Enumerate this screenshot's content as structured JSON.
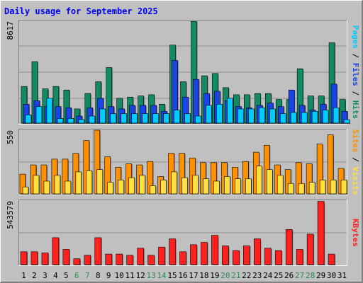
{
  "chart_data": [
    {
      "type": "bar",
      "title": "Daily usage for September 2025",
      "panel": "hits-files-pages",
      "categories": [
        "1",
        "2",
        "3",
        "4",
        "5",
        "6",
        "7",
        "8",
        "9",
        "10",
        "11",
        "12",
        "13",
        "14",
        "15",
        "16",
        "17",
        "18",
        "19",
        "20",
        "21",
        "22",
        "23",
        "24",
        "25",
        "26",
        "27",
        "28",
        "29",
        "30",
        "31"
      ],
      "weekend_days": [
        "6",
        "7",
        "13",
        "14",
        "20",
        "21",
        "27",
        "28"
      ],
      "ymax_label": "8617",
      "ylim": [
        0,
        8617
      ],
      "ylabel_parts": [
        {
          "text": "Pages",
          "color": "#00ccff"
        },
        {
          "text": " / ",
          "color": "#000000"
        },
        {
          "text": "Files",
          "color": "#1a44e6"
        },
        {
          "text": " / ",
          "color": "#000000"
        },
        {
          "text": "Hits",
          "color": "#138a66"
        }
      ],
      "series": [
        {
          "name": "Hits",
          "color": "#138a66",
          "values": [
            3100,
            5200,
            2900,
            3100,
            2800,
            1200,
            2500,
            3500,
            4700,
            2100,
            2200,
            2300,
            2400,
            1600,
            6600,
            3500,
            8600,
            4000,
            4200,
            3000,
            2400,
            2400,
            2500,
            2500,
            2000,
            2000,
            4600,
            2300,
            2300,
            6800,
            2000
          ]
        },
        {
          "name": "Files",
          "color": "#1a44e6",
          "values": [
            1600,
            1900,
            1400,
            1400,
            1300,
            600,
            1300,
            2100,
            1400,
            1200,
            1500,
            1500,
            1500,
            1000,
            5300,
            2200,
            3700,
            2500,
            2700,
            1900,
            1400,
            1300,
            1500,
            1700,
            1400,
            2800,
            1500,
            1100,
            1600,
            3300,
            1000
          ]
        },
        {
          "name": "Pages",
          "color": "#00ccff",
          "values": [
            700,
            1400,
            2100,
            400,
            400,
            300,
            600,
            1200,
            800,
            800,
            800,
            800,
            800,
            800,
            1100,
            800,
            600,
            1500,
            1600,
            2100,
            1200,
            1200,
            1300,
            1200,
            800,
            900,
            900,
            1000,
            1100,
            1300,
            300
          ]
        }
      ]
    },
    {
      "type": "bar",
      "panel": "visits-sites",
      "categories": [
        "1",
        "2",
        "3",
        "4",
        "5",
        "6",
        "7",
        "8",
        "9",
        "10",
        "11",
        "12",
        "13",
        "14",
        "15",
        "16",
        "17",
        "18",
        "19",
        "20",
        "21",
        "22",
        "23",
        "24",
        "25",
        "26",
        "27",
        "28",
        "29",
        "30",
        "31"
      ],
      "ymax_label": "550",
      "ylim": [
        0,
        550
      ],
      "ylabel_parts": [
        {
          "text": "Sites",
          "color": "#ff9000"
        },
        {
          "text": " / ",
          "color": "#000000"
        },
        {
          "text": "Visits",
          "color": "#ffe040"
        }
      ],
      "series": [
        {
          "name": "Visits",
          "color": "#ffe040",
          "values": [
            60,
            160,
            110,
            160,
            110,
            190,
            200,
            210,
            100,
            120,
            140,
            160,
            70,
            120,
            190,
            140,
            160,
            130,
            110,
            150,
            130,
            130,
            240,
            210,
            160,
            90,
            90,
            100,
            120,
            120,
            120
          ]
        },
        {
          "name": "Sites",
          "color": "#ff9000",
          "values": [
            170,
            250,
            250,
            300,
            300,
            350,
            460,
            560,
            320,
            230,
            260,
            250,
            280,
            150,
            350,
            350,
            310,
            270,
            270,
            270,
            230,
            280,
            360,
            420,
            250,
            210,
            270,
            260,
            430,
            510,
            220
          ]
        }
      ]
    },
    {
      "type": "bar",
      "panel": "kbytes",
      "categories": [
        "1",
        "2",
        "3",
        "4",
        "5",
        "6",
        "7",
        "8",
        "9",
        "10",
        "11",
        "12",
        "13",
        "14",
        "15",
        "16",
        "17",
        "18",
        "19",
        "20",
        "21",
        "22",
        "23",
        "24",
        "25",
        "26",
        "27",
        "28",
        "29",
        "30",
        "31"
      ],
      "ymax_label": "543579",
      "ylim": [
        0,
        543579
      ],
      "ylabel_parts": [
        {
          "text": "KBytes",
          "color": "#ff2020"
        }
      ],
      "series": [
        {
          "name": "KBytes",
          "color": "#ff2020",
          "values": [
            110000,
            110000,
            100000,
            230000,
            130000,
            50000,
            80000,
            230000,
            90000,
            90000,
            80000,
            140000,
            80000,
            150000,
            220000,
            110000,
            170000,
            190000,
            250000,
            160000,
            120000,
            160000,
            220000,
            140000,
            120000,
            300000,
            130000,
            260000,
            540000,
            90000,
            0
          ]
        }
      ]
    }
  ]
}
